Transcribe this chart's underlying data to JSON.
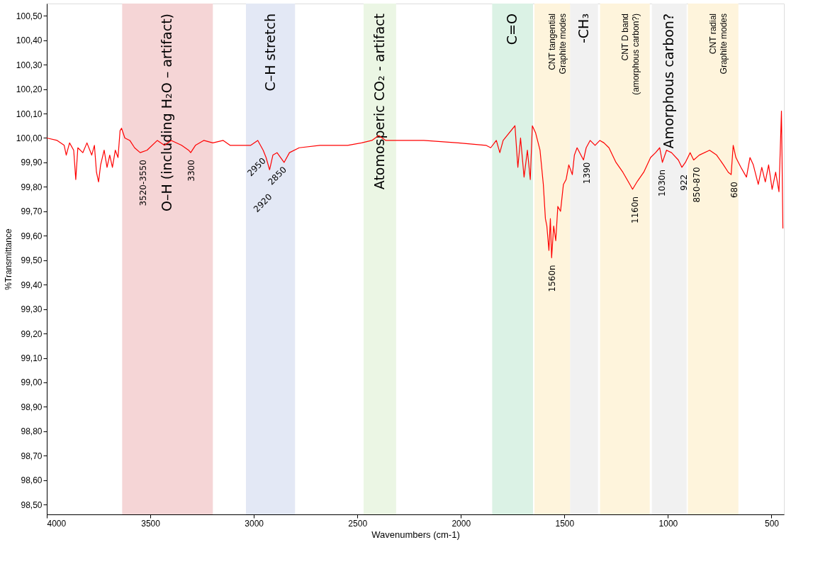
{
  "chart_data": {
    "type": "line",
    "xlabel": "Wavenumbers (cm-1)",
    "ylabel": "%Transmittance",
    "xlim": [
      4000,
      440
    ],
    "ylim": [
      98.46,
      100.55
    ],
    "xticks": [
      4000,
      3500,
      3000,
      2500,
      2000,
      1500,
      1000,
      500
    ],
    "yticks": [
      {
        "value": 98.5,
        "label": "98,50"
      },
      {
        "value": 98.6,
        "label": "98,60"
      },
      {
        "value": 98.7,
        "label": "98,70"
      },
      {
        "value": 98.8,
        "label": "98,80"
      },
      {
        "value": 98.9,
        "label": "98,90"
      },
      {
        "value": 99.0,
        "label": "99,00"
      },
      {
        "value": 99.1,
        "label": "99,10"
      },
      {
        "value": 99.2,
        "label": "99,20"
      },
      {
        "value": 99.3,
        "label": "99,30"
      },
      {
        "value": 99.4,
        "label": "99,40"
      },
      {
        "value": 99.5,
        "label": "99,50"
      },
      {
        "value": 99.6,
        "label": "99,60"
      },
      {
        "value": 99.7,
        "label": "99,70"
      },
      {
        "value": 99.8,
        "label": "99,80"
      },
      {
        "value": 99.9,
        "label": "99,90"
      },
      {
        "value": 100.0,
        "label": "100,00"
      },
      {
        "value": 100.1,
        "label": "100,10"
      },
      {
        "value": 100.2,
        "label": "100,20"
      },
      {
        "value": 100.3,
        "label": "100,30"
      },
      {
        "value": 100.4,
        "label": "100,40"
      },
      {
        "value": 100.5,
        "label": "100,50"
      }
    ],
    "grid": false,
    "series": [
      {
        "color": "#ff0000",
        "x": [
          4000,
          3950,
          3916,
          3906,
          3890,
          3870,
          3860,
          3850,
          3826,
          3806,
          3783,
          3770,
          3760,
          3750,
          3740,
          3723,
          3709,
          3696,
          3683,
          3669,
          3656,
          3646,
          3639,
          3623,
          3599,
          3576,
          3549,
          3516,
          3466,
          3432,
          3399,
          3349,
          3315,
          3305,
          3282,
          3242,
          3198,
          3148,
          3115,
          3065,
          3015,
          2981,
          2955,
          2941,
          2924,
          2908,
          2888,
          2854,
          2828,
          2781,
          2681,
          2547,
          2480,
          2430,
          2397,
          2363,
          2280,
          2180,
          2013,
          1879,
          1856,
          1829,
          1812,
          1796,
          1739,
          1725,
          1712,
          1695,
          1679,
          1665,
          1655,
          1639,
          1618,
          1602,
          1592,
          1585,
          1575,
          1568,
          1562,
          1552,
          1542,
          1532,
          1519,
          1505,
          1492,
          1479,
          1462,
          1452,
          1439,
          1408,
          1395,
          1376,
          1352,
          1329,
          1309,
          1285,
          1251,
          1218,
          1184,
          1171,
          1150,
          1117,
          1084,
          1060,
          1040,
          1027,
          1007,
          983,
          950,
          933,
          916,
          893,
          876,
          849,
          799,
          765,
          732,
          709,
          695,
          685,
          672,
          648,
          621,
          604,
          588,
          564,
          547,
          530,
          514,
          497,
          480,
          464,
          452,
          445
        ],
        "values": [
          100.0,
          99.99,
          99.97,
          99.93,
          99.98,
          99.95,
          99.83,
          99.96,
          99.94,
          99.98,
          99.93,
          99.97,
          99.86,
          99.82,
          99.89,
          99.95,
          99.88,
          99.93,
          99.88,
          99.95,
          99.92,
          100.03,
          100.04,
          100.0,
          99.99,
          99.96,
          99.94,
          99.95,
          99.99,
          99.97,
          99.99,
          99.97,
          99.95,
          99.94,
          99.97,
          99.99,
          99.98,
          99.99,
          99.97,
          99.97,
          99.97,
          99.99,
          99.95,
          99.92,
          99.87,
          99.93,
          99.94,
          99.9,
          99.94,
          99.96,
          99.97,
          99.97,
          99.98,
          99.99,
          100.01,
          99.99,
          99.99,
          99.99,
          99.98,
          99.97,
          99.96,
          99.99,
          99.94,
          99.99,
          100.05,
          99.88,
          100.0,
          99.84,
          99.95,
          99.83,
          100.05,
          100.02,
          99.95,
          99.81,
          99.67,
          99.64,
          99.54,
          99.67,
          99.51,
          99.64,
          99.58,
          99.72,
          99.7,
          99.81,
          99.83,
          99.89,
          99.85,
          99.93,
          99.96,
          99.91,
          99.96,
          99.99,
          99.97,
          99.99,
          99.98,
          99.96,
          99.9,
          99.86,
          99.81,
          99.79,
          99.82,
          99.86,
          99.92,
          99.94,
          99.96,
          99.9,
          99.95,
          99.94,
          99.91,
          99.88,
          99.9,
          99.94,
          99.91,
          99.93,
          99.95,
          99.93,
          99.89,
          99.86,
          99.85,
          99.97,
          99.92,
          99.88,
          99.84,
          99.92,
          99.89,
          99.81,
          99.88,
          99.82,
          99.89,
          99.79,
          99.86,
          99.78,
          100.11,
          99.63
        ]
      }
    ],
    "bands": [
      {
        "axis": "x",
        "from": 3636,
        "to": 3198,
        "label": "O–H (including H₂O – artifact)",
        "color": "#f5d5d6"
      },
      {
        "axis": "x",
        "from": 3038,
        "to": 2801,
        "label": "C–H stretch",
        "color": "#e3e8f5"
      },
      {
        "axis": "x",
        "from": 2470,
        "to": 2313,
        "label": "Atomosperic CO₂  - artifact",
        "color": "#ebf6e4"
      },
      {
        "axis": "x",
        "from": 1849,
        "to": 1652,
        "label": "C=O",
        "color": "#dbf2e5"
      },
      {
        "axis": "x",
        "from": 1645,
        "to": 1472,
        "label": "CNT tangential\nGraphite modes",
        "color": "#fef4dc"
      },
      {
        "axis": "x",
        "from": 1472,
        "to": 1338,
        "label": "-CH₃",
        "color": "#f1f1f1"
      },
      {
        "axis": "x",
        "from": 1328,
        "to": 1088,
        "label": "CNT D band\n(amorphous carbon?)",
        "color": "#fef4dc"
      },
      {
        "axis": "x",
        "from": 1078,
        "to": 910,
        "label": "Amorphous carbon?",
        "color": "#f1f1f1"
      },
      {
        "axis": "x",
        "from": 904,
        "to": 660,
        "label": "CNT radial\nGraphite modes",
        "color": "#fef4dc"
      }
    ],
    "annotations": [
      {
        "text": "3520-3550",
        "x": 3535,
        "y": 99.94
      },
      {
        "text": "3300",
        "x": 3300,
        "y": 99.94
      },
      {
        "text": "2950",
        "x": 2950,
        "y": 99.93
      },
      {
        "text": "2920",
        "x": 2920,
        "y": 99.87
      },
      {
        "text": "2850",
        "x": 2850,
        "y": 99.9
      },
      {
        "text": "1560n",
        "x": 1560,
        "y": 99.51
      },
      {
        "text": "1390",
        "x": 1390,
        "y": 99.93
      },
      {
        "text": "1160n",
        "x": 1160,
        "y": 99.79
      },
      {
        "text": "1030n",
        "x": 1030,
        "y": 99.9
      },
      {
        "text": "922",
        "x": 922,
        "y": 99.88
      },
      {
        "text": "850-870",
        "x": 860,
        "y": 99.91
      },
      {
        "text": "680",
        "x": 680,
        "y": 99.85
      }
    ]
  }
}
